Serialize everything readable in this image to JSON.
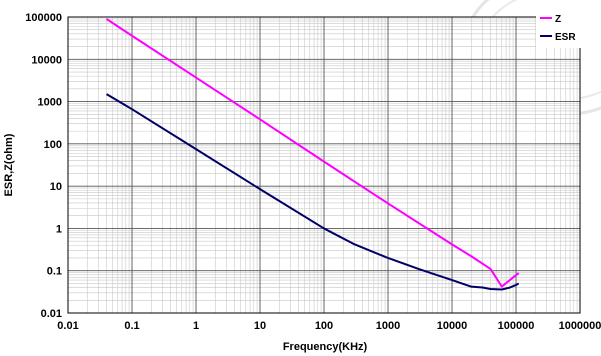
{
  "chart_data": {
    "type": "line",
    "xlabel": "Frequency(KHz)",
    "ylabel": "ESR,Z(ohm)",
    "xscale": "log",
    "yscale": "log",
    "xlim": [
      0.01,
      1000000
    ],
    "ylim": [
      0.01,
      100000
    ],
    "xticks": [
      0.01,
      0.1,
      1,
      10,
      100,
      1000,
      10000,
      100000,
      1000000
    ],
    "xtick_labels": [
      "0.01",
      "0.1",
      "1",
      "10",
      "100",
      "1000",
      "10000",
      "100000",
      "1000000"
    ],
    "yticks": [
      0.01,
      0.1,
      1,
      10,
      100,
      1000,
      10000,
      100000
    ],
    "ytick_labels": [
      "0.01",
      "0.1",
      "1",
      "10",
      "100",
      "1000",
      "10000",
      "100000"
    ],
    "grid": true,
    "legend_position": "top-right",
    "series": [
      {
        "name": "Z",
        "color": "#ff00ff",
        "points": [
          [
            0.04,
            90000
          ],
          [
            0.1,
            36000
          ],
          [
            1,
            3700
          ],
          [
            10,
            380
          ],
          [
            100,
            38
          ],
          [
            1000,
            3.9
          ],
          [
            10000,
            0.42
          ],
          [
            20000,
            0.22
          ],
          [
            40000,
            0.11
          ],
          [
            60000,
            0.042
          ],
          [
            80000,
            0.06
          ],
          [
            110000,
            0.088
          ]
        ]
      },
      {
        "name": "ESR",
        "color": "#000066",
        "points": [
          [
            0.04,
            1500
          ],
          [
            0.1,
            660
          ],
          [
            1,
            75
          ],
          [
            10,
            8.5
          ],
          [
            100,
            1.0
          ],
          [
            300,
            0.42
          ],
          [
            1000,
            0.2
          ],
          [
            3000,
            0.11
          ],
          [
            10000,
            0.06
          ],
          [
            20000,
            0.042
          ],
          [
            30000,
            0.04
          ],
          [
            40000,
            0.037
          ],
          [
            60000,
            0.036
          ],
          [
            80000,
            0.04
          ],
          [
            100000,
            0.046
          ],
          [
            110000,
            0.05
          ]
        ]
      }
    ]
  }
}
